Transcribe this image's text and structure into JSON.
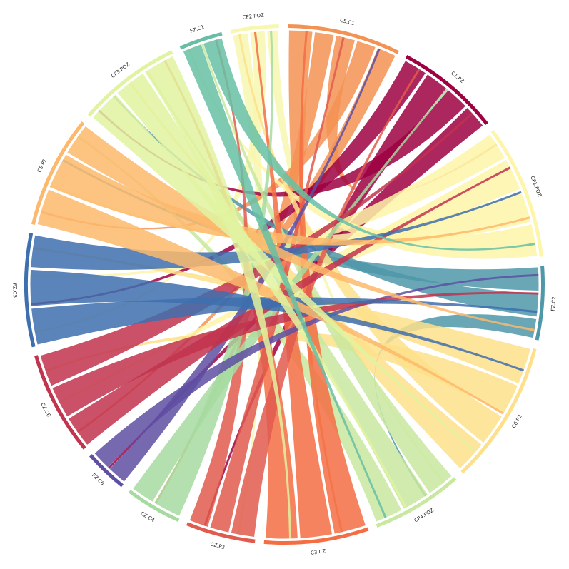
{
  "chart_data": {
    "type": "chord",
    "nodes": [
      {
        "name": "CP2.POZ",
        "color": "#f7f7b0",
        "value": 11
      },
      {
        "name": "C5.C1",
        "color": "#f49254",
        "value": 26
      },
      {
        "name": "C1.PZ",
        "color": "#9e0142",
        "value": 24
      },
      {
        "name": "CP1.POZ",
        "color": "#fef5a8",
        "value": 31
      },
      {
        "name": "FZ.C2",
        "color": "#4f98a9",
        "value": 17
      },
      {
        "name": "C6.P2",
        "color": "#fee08b",
        "value": 33
      },
      {
        "name": "CP4.POZ",
        "color": "#c8e89f",
        "value": 21
      },
      {
        "name": "C3.CZ",
        "color": "#f46d43",
        "value": 24
      },
      {
        "name": "CZ.P2",
        "color": "#e05a4d",
        "value": 16
      },
      {
        "name": "CZ.C4",
        "color": "#a6dba0",
        "value": 13
      },
      {
        "name": "FZ.C6",
        "color": "#5e4fa2",
        "value": 10
      },
      {
        "name": "CZ.C6",
        "color": "#c2334d",
        "value": 24
      },
      {
        "name": "FZ.C5",
        "color": "#3e6fae",
        "value": 26
      },
      {
        "name": "C5.P1",
        "color": "#fdb86b",
        "value": 26
      },
      {
        "name": "CP3.POZ",
        "color": "#e0f3a0",
        "value": 24
      },
      {
        "name": "FZ.C1",
        "color": "#66bfa4",
        "value": 10
      }
    ],
    "chords": [
      {
        "source": "CP2.POZ",
        "target": "CZ.P2",
        "value": 4
      },
      {
        "source": "CP2.POZ",
        "target": "FZ.C5",
        "value": 4
      },
      {
        "source": "CP2.POZ",
        "target": "CP4.POZ",
        "value": 3
      },
      {
        "source": "C5.C1",
        "target": "C3.CZ",
        "value": 6
      },
      {
        "source": "C5.C1",
        "target": "CZ.C4",
        "value": 5
      },
      {
        "source": "C5.C1",
        "target": "CP1.POZ",
        "value": 5
      },
      {
        "source": "C5.C1",
        "target": "C5.P1",
        "value": 5
      },
      {
        "source": "C5.C1",
        "target": "CZ.C6",
        "value": 5
      },
      {
        "source": "C1.PZ",
        "target": "FZ.C5",
        "value": 6
      },
      {
        "source": "C1.PZ",
        "target": "CZ.P2",
        "value": 6
      },
      {
        "source": "C1.PZ",
        "target": "CP3.POZ",
        "value": 6
      },
      {
        "source": "C1.PZ",
        "target": "FZ.C6",
        "value": 6
      },
      {
        "source": "CP1.POZ",
        "target": "FZ.C5",
        "value": 7
      },
      {
        "source": "CP1.POZ",
        "target": "CZ.C6",
        "value": 8
      },
      {
        "source": "CP1.POZ",
        "target": "C5.P1",
        "value": 8
      },
      {
        "source": "CP1.POZ",
        "target": "FZ.C1",
        "value": 8
      },
      {
        "source": "FZ.C2",
        "target": "C5.P1",
        "value": 6
      },
      {
        "source": "FZ.C2",
        "target": "CP3.POZ",
        "value": 6
      },
      {
        "source": "FZ.C2",
        "target": "CP4.POZ",
        "value": 5
      },
      {
        "source": "C6.P2",
        "target": "FZ.C5",
        "value": 9
      },
      {
        "source": "C6.P2",
        "target": "CZ.C6",
        "value": 8
      },
      {
        "source": "C6.P2",
        "target": "CP2.POZ",
        "value": 8
      },
      {
        "source": "C6.P2",
        "target": "CP3.POZ",
        "value": 8
      },
      {
        "source": "CP4.POZ",
        "target": "FZ.C1",
        "value": 7
      },
      {
        "source": "CP4.POZ",
        "target": "CP3.POZ",
        "value": 7
      },
      {
        "source": "CP4.POZ",
        "target": "C5.P1",
        "value": 7
      },
      {
        "source": "C3.CZ",
        "target": "C5.C1",
        "value": 8
      },
      {
        "source": "C3.CZ",
        "target": "CP2.POZ",
        "value": 8
      },
      {
        "source": "C3.CZ",
        "target": "CP3.POZ",
        "value": 8
      },
      {
        "source": "CZ.P2",
        "target": "C1.PZ",
        "value": 6
      },
      {
        "source": "CZ.P2",
        "target": "C5.C1",
        "value": 5
      },
      {
        "source": "CZ.P2",
        "target": "FZ.C1",
        "value": 5
      },
      {
        "source": "CZ.C4",
        "target": "CP2.POZ",
        "value": 7
      },
      {
        "source": "CZ.C4",
        "target": "C1.PZ",
        "value": 6
      },
      {
        "source": "FZ.C6",
        "target": "C5.C1",
        "value": 5
      },
      {
        "source": "FZ.C6",
        "target": "FZ.C2",
        "value": 5
      },
      {
        "source": "CZ.C6",
        "target": "CP1.POZ",
        "value": 8
      },
      {
        "source": "CZ.C6",
        "target": "FZ.C2",
        "value": 8
      },
      {
        "source": "CZ.C6",
        "target": "C1.PZ",
        "value": 8
      },
      {
        "source": "FZ.C5",
        "target": "FZ.C2",
        "value": 9
      },
      {
        "source": "FZ.C5",
        "target": "C6.P2",
        "value": 9
      },
      {
        "source": "FZ.C5",
        "target": "CP1.POZ",
        "value": 8
      },
      {
        "source": "C5.P1",
        "target": "C6.P2",
        "value": 9
      },
      {
        "source": "C5.P1",
        "target": "CP1.POZ",
        "value": 9
      },
      {
        "source": "C5.P1",
        "target": "FZ.C2",
        "value": 8
      },
      {
        "source": "CP3.POZ",
        "target": "C6.P2",
        "value": 8
      },
      {
        "source": "CP3.POZ",
        "target": "CP4.POZ",
        "value": 8
      },
      {
        "source": "CP3.POZ",
        "target": "C3.CZ",
        "value": 8
      },
      {
        "source": "FZ.C1",
        "target": "CP4.POZ",
        "value": 5
      },
      {
        "source": "FZ.C1",
        "target": "CP1.POZ",
        "value": 5
      }
    ]
  }
}
